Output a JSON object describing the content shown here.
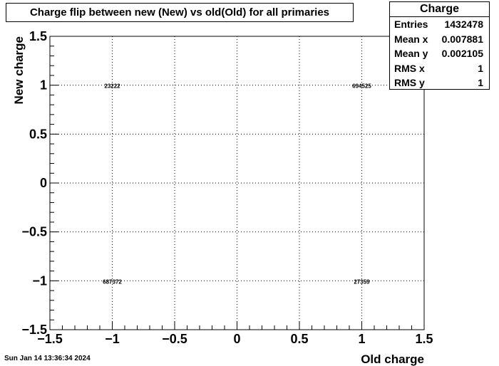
{
  "chart_data": {
    "type": "table",
    "title": "Charge flip between new (New) vs old(Old) for all primaries",
    "xlabel": "Old charge",
    "ylabel": "New charge",
    "xlim": [
      -1.5,
      1.5
    ],
    "ylim": [
      -1.5,
      1.5
    ],
    "grid": true,
    "x_ticks": [
      -1.5,
      -1,
      -0.5,
      0,
      0.5,
      1,
      1.5
    ],
    "x_tick_labels": [
      "−1.5",
      "−1",
      "−0.5",
      "0",
      "0.5",
      "1",
      "1.5"
    ],
    "y_ticks": [
      1.5,
      1,
      0.5,
      0,
      -0.5,
      -1,
      -1.5
    ],
    "y_tick_labels": [
      "1.5",
      "1",
      "0.5",
      "0",
      "−0.5",
      "−1",
      "−1.5"
    ],
    "cells": [
      {
        "x": -1,
        "y": 1,
        "label": "23222"
      },
      {
        "x": 1,
        "y": 1,
        "label": "694525"
      },
      {
        "x": -1,
        "y": -1,
        "label": "687372"
      },
      {
        "x": 1,
        "y": -1,
        "label": "27359"
      }
    ]
  },
  "stats": {
    "title": "Charge",
    "rows": [
      {
        "key": "Entries",
        "value": "1432478"
      },
      {
        "key": "Mean x",
        "value": "0.007881"
      },
      {
        "key": "Mean y",
        "value": "0.002105"
      },
      {
        "key": "RMS x",
        "value": "1"
      },
      {
        "key": "RMS y",
        "value": "1"
      }
    ]
  },
  "footer": {
    "date": "Sun Jan 14 13:36:34 2024"
  }
}
